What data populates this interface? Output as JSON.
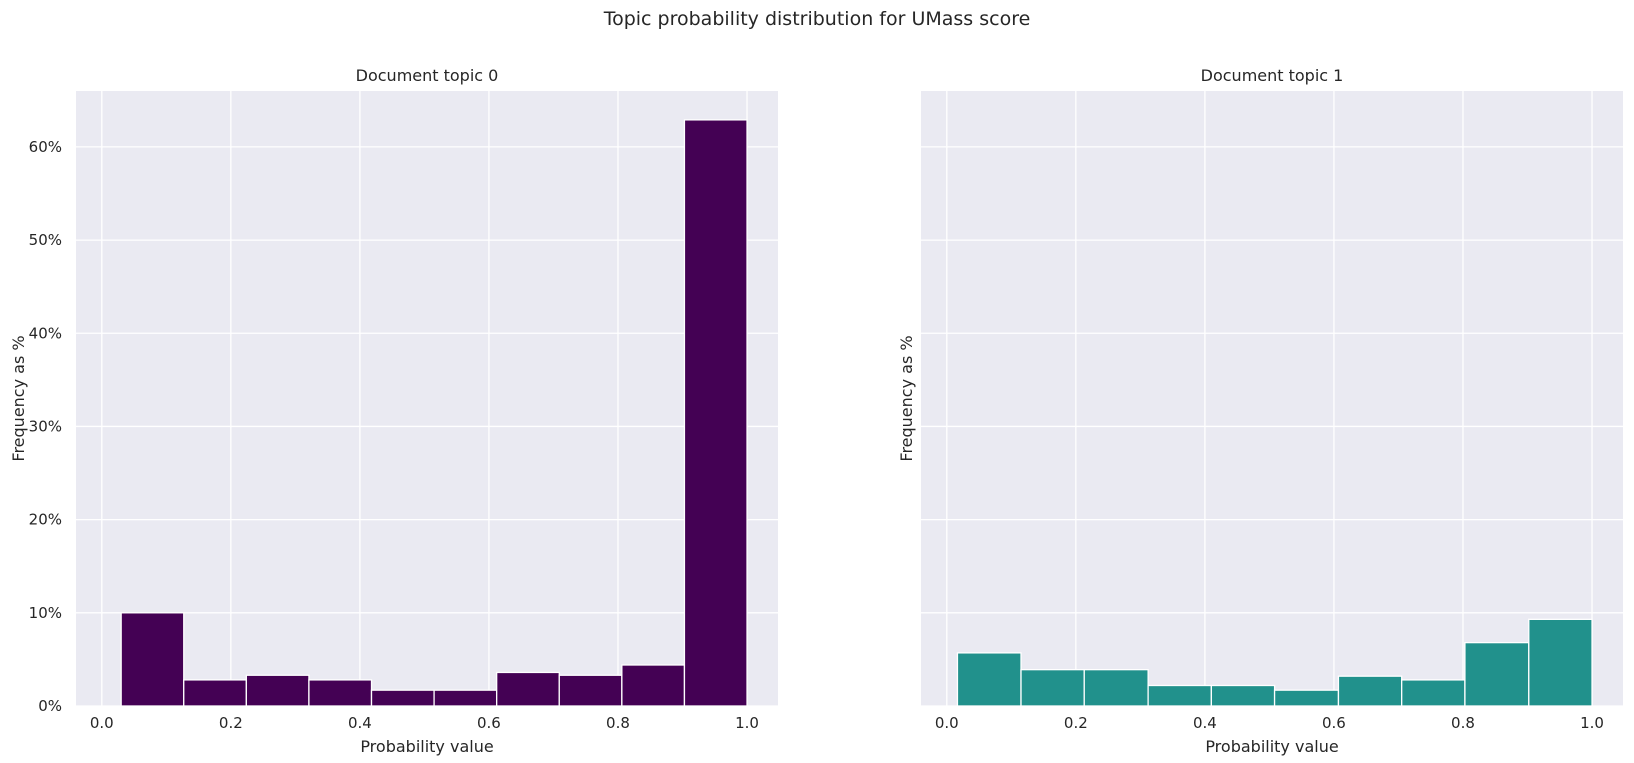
{
  "figure": {
    "suptitle": "Topic probability distribution for UMass score"
  },
  "chart_data": [
    {
      "type": "bar",
      "title": "Document topic 0",
      "xlabel": "Probability value",
      "ylabel": "Frequency as %",
      "color": "#440154",
      "xlim": [
        -0.04,
        1.048
      ],
      "ylim": [
        0,
        66
      ],
      "xticks": [
        0.0,
        0.2,
        0.4,
        0.6,
        0.8,
        1.0
      ],
      "xtick_labels": [
        "0.0",
        "0.2",
        "0.4",
        "0.6",
        "0.8",
        "1.0"
      ],
      "yticks": [
        0,
        10,
        20,
        30,
        40,
        50,
        60
      ],
      "ytick_labels": [
        "0%",
        "10%",
        "20%",
        "30%",
        "40%",
        "50%",
        "60%"
      ],
      "show_yticklabels": true,
      "grid": true,
      "bins": [
        {
          "x0": 0.03,
          "x1": 0.127,
          "value": 10.0
        },
        {
          "x0": 0.127,
          "x1": 0.224,
          "value": 2.8
        },
        {
          "x0": 0.224,
          "x1": 0.321,
          "value": 3.3
        },
        {
          "x0": 0.321,
          "x1": 0.418,
          "value": 2.8
        },
        {
          "x0": 0.418,
          "x1": 0.515,
          "value": 1.7
        },
        {
          "x0": 0.515,
          "x1": 0.612,
          "value": 1.7
        },
        {
          "x0": 0.612,
          "x1": 0.709,
          "value": 3.6
        },
        {
          "x0": 0.709,
          "x1": 0.806,
          "value": 3.3
        },
        {
          "x0": 0.806,
          "x1": 0.903,
          "value": 4.4
        },
        {
          "x0": 0.903,
          "x1": 1.0,
          "value": 62.9
        }
      ]
    },
    {
      "type": "bar",
      "title": "Document topic 1",
      "xlabel": "Probability value",
      "ylabel": "Frequency as %",
      "color": "#21918c",
      "xlim": [
        -0.04,
        1.048
      ],
      "ylim": [
        0,
        66
      ],
      "xticks": [
        0.0,
        0.2,
        0.4,
        0.6,
        0.8,
        1.0
      ],
      "xtick_labels": [
        "0.0",
        "0.2",
        "0.4",
        "0.6",
        "0.8",
        "1.0"
      ],
      "yticks": [
        0,
        10,
        20,
        30,
        40,
        50,
        60
      ],
      "ytick_labels": [],
      "show_yticklabels": false,
      "grid": true,
      "bins": [
        {
          "x0": 0.0165,
          "x1": 0.115,
          "value": 5.7
        },
        {
          "x0": 0.115,
          "x1": 0.213,
          "value": 3.9
        },
        {
          "x0": 0.213,
          "x1": 0.312,
          "value": 3.9
        },
        {
          "x0": 0.312,
          "x1": 0.41,
          "value": 2.2
        },
        {
          "x0": 0.41,
          "x1": 0.508,
          "value": 2.2
        },
        {
          "x0": 0.508,
          "x1": 0.607,
          "value": 1.7
        },
        {
          "x0": 0.607,
          "x1": 0.705,
          "value": 3.2
        },
        {
          "x0": 0.705,
          "x1": 0.803,
          "value": 2.8
        },
        {
          "x0": 0.803,
          "x1": 0.902,
          "value": 6.8
        },
        {
          "x0": 0.902,
          "x1": 1.0,
          "value": 9.3
        }
      ]
    }
  ]
}
